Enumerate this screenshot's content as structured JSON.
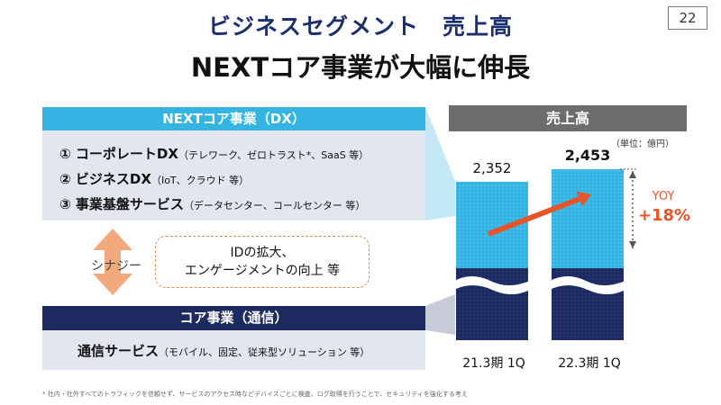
{
  "page": {
    "title": "ビジネスセグメント　売上高",
    "subtitle": "NEXTコア事業が大幅に伸長",
    "page_number": "22"
  },
  "dx_panel": {
    "header": "NEXTコア事業（DX）",
    "items": [
      {
        "main": "① コーポレートDX",
        "sub": "（テレワーク、ゼロトラスト*、SaaS 等）"
      },
      {
        "main": "② ビジネスDX",
        "sub": "（IoT、クラウド 等）"
      },
      {
        "main": "③ 事業基盤サービス",
        "sub": "（データセンター、コールセンター 等）"
      }
    ]
  },
  "synergy": {
    "label": "シナジー",
    "lines": [
      "IDの拡大、",
      "エンゲージメントの向上 等"
    ]
  },
  "core_panel": {
    "header": "コア事業（通信）",
    "item_main": "通信サービス",
    "item_sub": "（モバイル、固定、従来型ソリューション 等）"
  },
  "footnote": "* 社内・社外すべてのトラフィックを信頼せず、サービスのアクセス時などデバイスごとに検査、ログ取得を行うことで、セキュリティを強化する考え",
  "chart_data": {
    "type": "bar",
    "title": "売上高",
    "unit": "（単位：億円）",
    "categories": [
      "21.3期 1Q",
      "22.3期 1Q"
    ],
    "values": [
      2352,
      2453
    ],
    "value_labels": [
      "2,352",
      "2,453"
    ],
    "series": [
      {
        "name": "NEXTコア事業（DX）",
        "color": "#34b4e3"
      },
      {
        "name": "コア事業（通信）",
        "color": "#1c2a60"
      }
    ],
    "yoy_label": "YOY",
    "yoy_value": "+18%",
    "axis_break": true,
    "colors": {
      "dx": "#34b4e3",
      "core": "#1c2a60",
      "accent": "#e8542a",
      "synergy": "#f2a97e"
    }
  }
}
